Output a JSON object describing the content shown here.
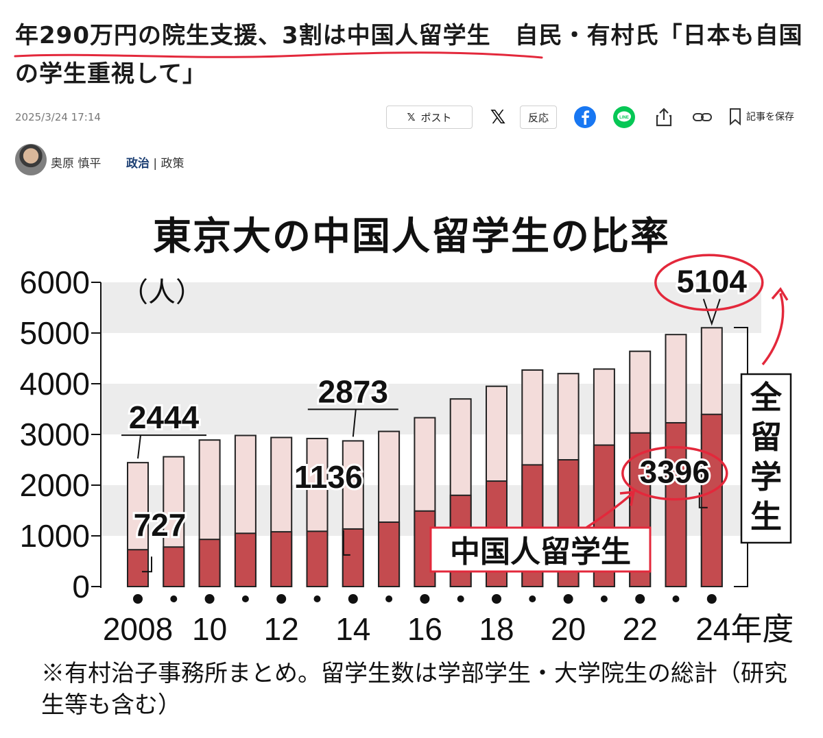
{
  "article": {
    "headline": "年290万円の院生支援、3割は中国人留学生　自民・有村氏「日本も自国の学生重視して」",
    "date": "2025/3/24 17:14",
    "share": {
      "post_label": "ポスト",
      "reaction_label": "反応",
      "save_label": "記事を保存",
      "line_label": "LINE"
    },
    "author": "奥原 慎平",
    "category": "政治",
    "subcategory": "政策",
    "category_sep": " | "
  },
  "chart_data": {
    "type": "bar",
    "title": "東京大の中国人留学生の比率",
    "ylabel": "（人）",
    "ylim": [
      0,
      6000
    ],
    "yticks": [
      "0",
      "1000",
      "2000",
      "3000",
      "4000",
      "5000",
      "6000"
    ],
    "x": [
      2008,
      2009,
      2010,
      2011,
      2012,
      2013,
      2014,
      2015,
      2016,
      2017,
      2018,
      2019,
      2020,
      2021,
      2022,
      2023,
      2024
    ],
    "xtick_labels": [
      "2008",
      "10",
      "12",
      "14",
      "16",
      "18",
      "20",
      "22",
      "24年度"
    ],
    "series": [
      {
        "name": "全留学生",
        "values": [
          2444,
          2560,
          2890,
          2980,
          2940,
          2920,
          2873,
          3060,
          3330,
          3700,
          3950,
          4270,
          4200,
          4290,
          4640,
          4970,
          5104
        ],
        "color": "#f3dcda"
      },
      {
        "name": "中国人留学生",
        "values": [
          727,
          780,
          930,
          1050,
          1080,
          1090,
          1136,
          1270,
          1490,
          1800,
          2080,
          2400,
          2500,
          2790,
          3030,
          3230,
          3396
        ],
        "color": "#c44b4f"
      }
    ],
    "annotations": [
      {
        "label": "2444",
        "x": 2008,
        "series": "全留学生"
      },
      {
        "label": "727",
        "x": 2008,
        "series": "中国人留学生"
      },
      {
        "label": "2873",
        "x": 2014,
        "series": "全留学生"
      },
      {
        "label": "1136",
        "x": 2014,
        "series": "中国人留学生"
      },
      {
        "label": "5104",
        "x": 2024,
        "series": "全留学生"
      },
      {
        "label": "3396",
        "x": 2024,
        "series": "中国人留学生"
      }
    ],
    "band_colors": [
      "#ffffff",
      "#ececec"
    ],
    "note": "※有村治子事務所まとめ。留学生数は学部学生・大学院生の総計（研究生等も含む）"
  },
  "colors": {
    "highlight_red": "#e3283b",
    "link_blue": "#1c3f73",
    "facebook": "#1877f2",
    "line": "#06c755"
  }
}
